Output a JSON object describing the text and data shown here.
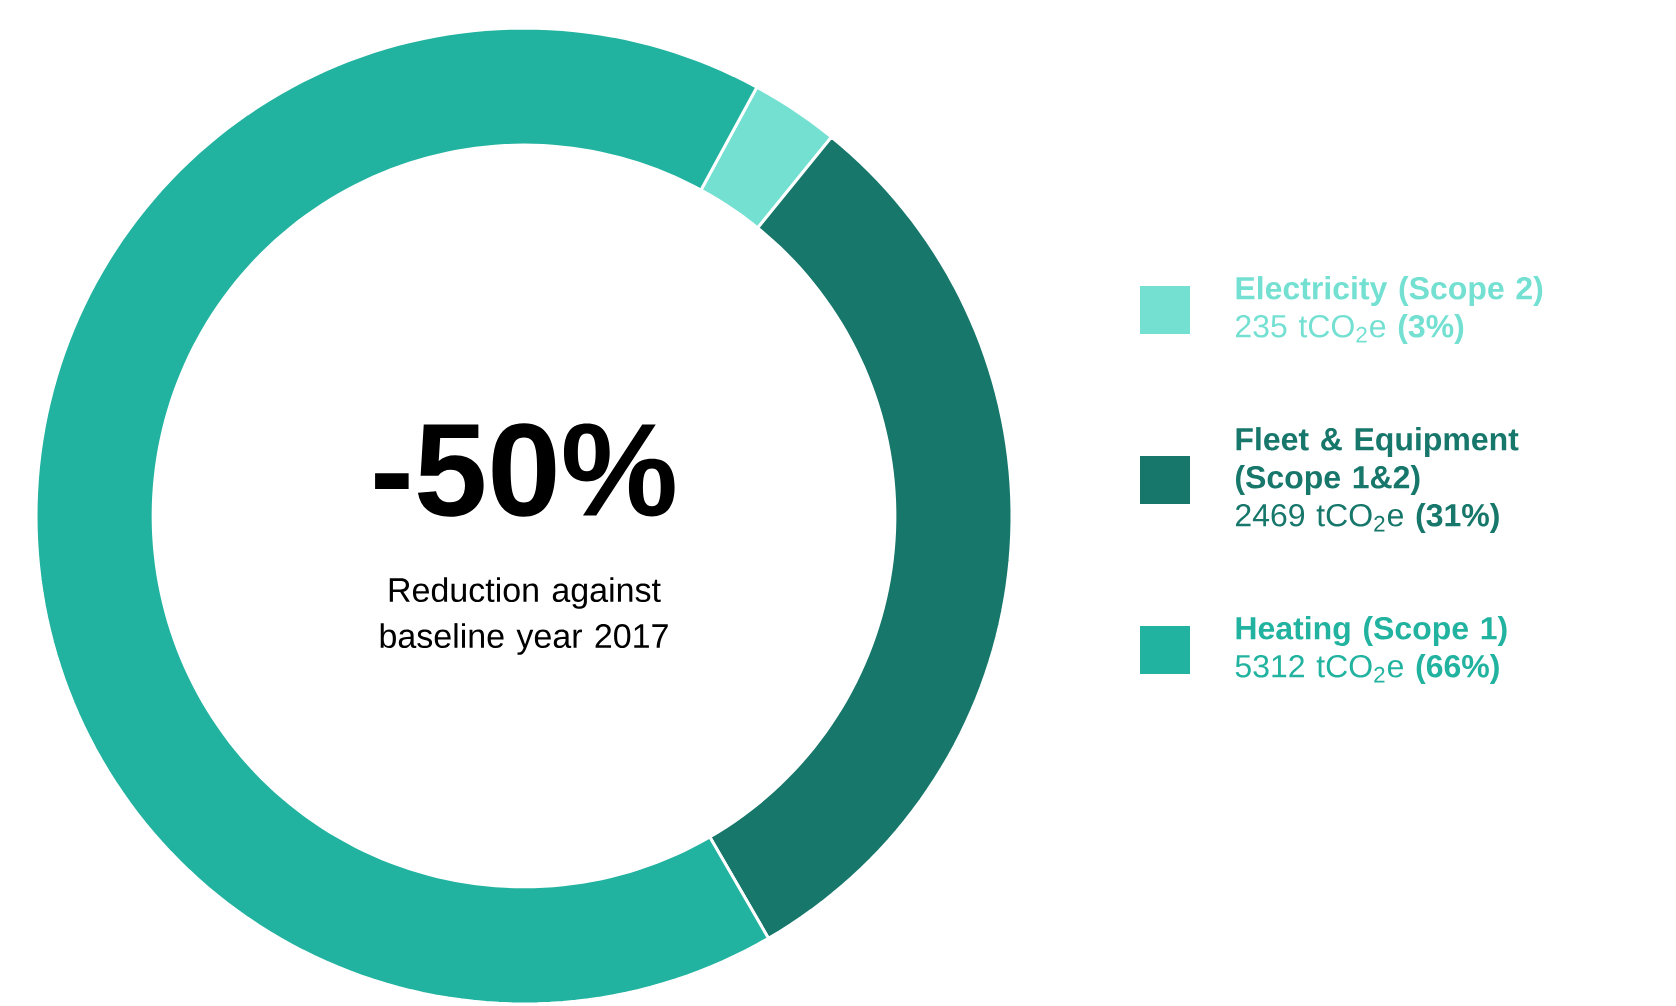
{
  "chart_data": {
    "type": "donut",
    "categories": [
      "Electricity (Scope 2)",
      "Fleet & Equipment (Scope 1&2)",
      "Heating (Scope 1)"
    ],
    "values": [
      235,
      2469,
      5312
    ],
    "value_labels": [
      "235 tCO$_{2}$e **(3%)**",
      "2469 tCO$_{2}$e **(31%)**",
      "5312 tCO$_{2}$e **(66%)**"
    ],
    "colors": [
      "#74e0d2",
      "#17776b",
      "#22b3a0"
    ],
    "legend": "right",
    "annotations": [
      "-50%",
      "Reduction against baseline year 2017"
    ]
  }
}
